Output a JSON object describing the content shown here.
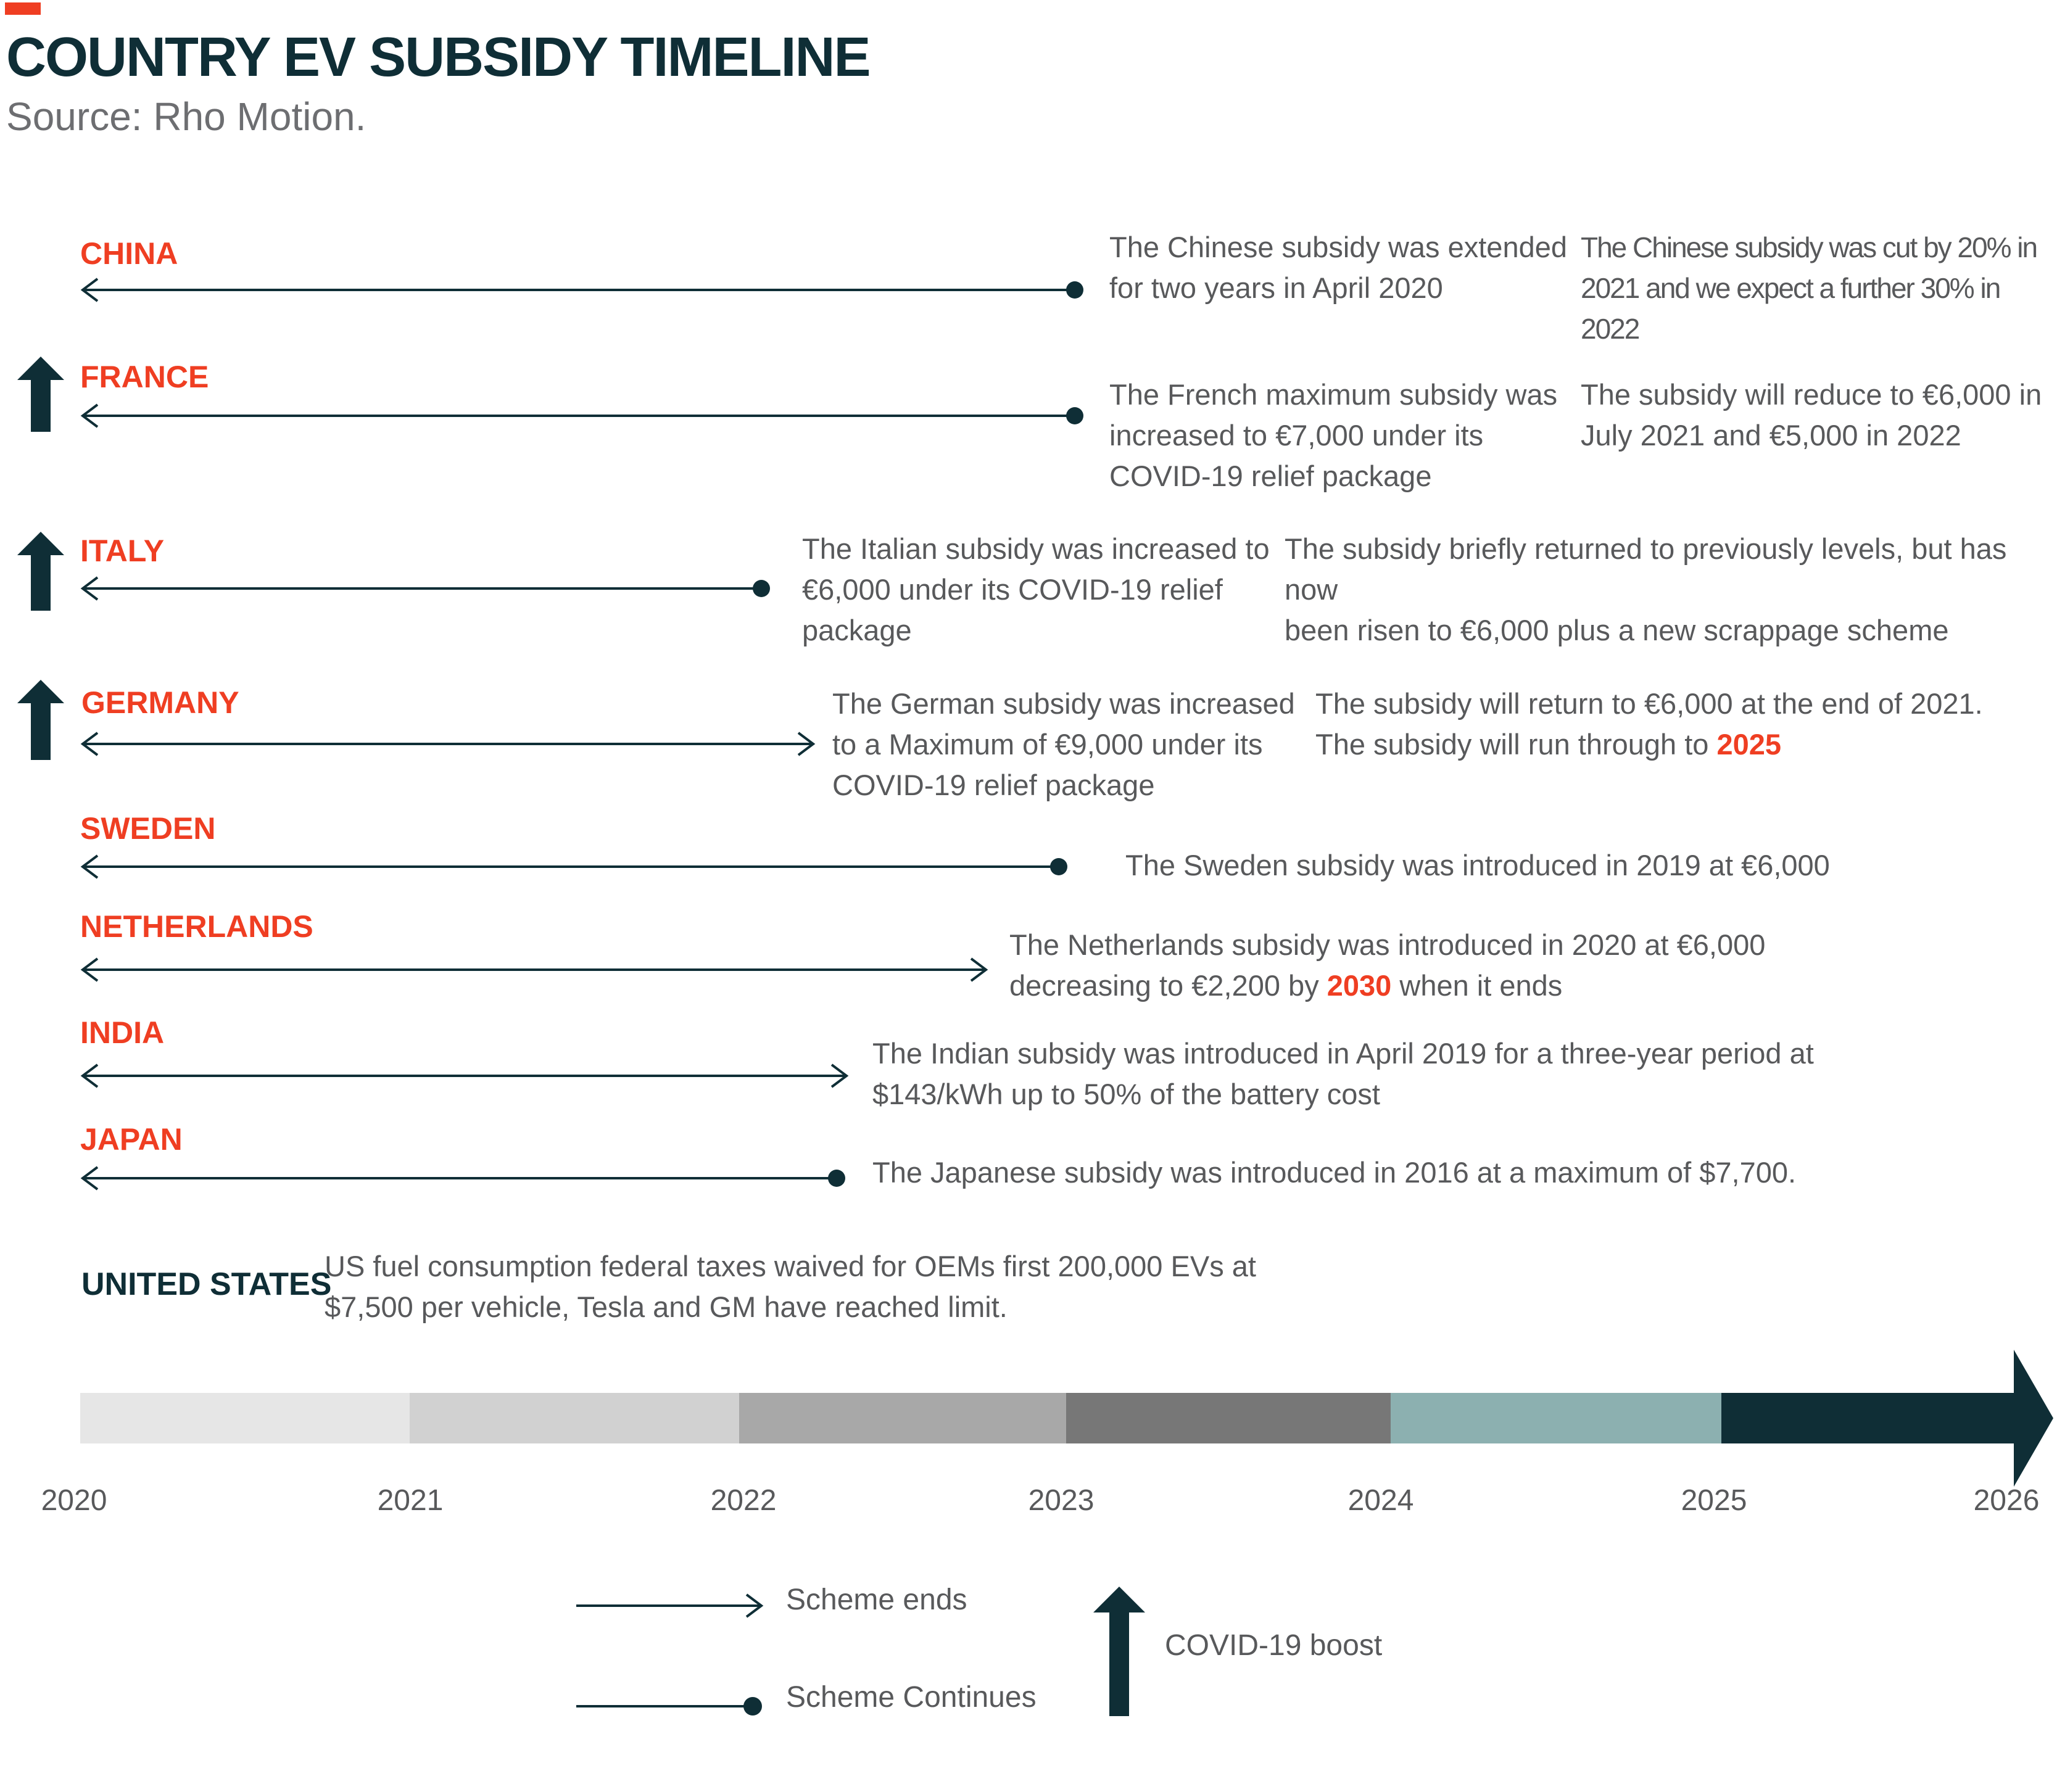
{
  "header": {
    "title": "COUNTRY EV SUBSIDY TIMELINE",
    "source": "Source: Rho Motion."
  },
  "colors": {
    "accent": "#ef3e22",
    "dark": "#0f2e36",
    "text": "#58595b"
  },
  "countries": [
    {
      "name": "CHINA",
      "end_year": 2023.0,
      "status": "continues",
      "covid_boost": false,
      "note1": "The Chinese subsidy was extended\nfor two years in April 2020",
      "note2": "The Chinese subsidy was cut by 20% in\n2021 and we expect a further 30% in 2022"
    },
    {
      "name": "FRANCE",
      "end_year": 2023.0,
      "status": "continues",
      "covid_boost": true,
      "note1": "The French maximum subsidy was\nincreased to €7,000 under its\nCOVID-19 relief package",
      "note2": "The subsidy will reduce to €6,000 in\nJuly 2021 and €5,000 in 2022"
    },
    {
      "name": "ITALY",
      "end_year": 2022.05,
      "status": "continues",
      "covid_boost": true,
      "note1": "The Italian subsidy was increased to\n€6,000 under its COVID-19 relief\npackage",
      "note2": "The subsidy briefly returned to previously levels, but has now\nbeen risen to €6,000 plus a new scrappage scheme"
    },
    {
      "name": "GERMANY",
      "end_year": 2022.2,
      "status": "ends",
      "covid_boost": true,
      "note1": "The German subsidy was increased\nto a Maximum of €9,000 under its\nCOVID-19 relief package",
      "note2_pre": "The subsidy will return to €6,000 at the end of 2021.\nThe subsidy will run through to ",
      "note2_hl": "2025"
    },
    {
      "name": "SWEDEN",
      "end_year": 2022.95,
      "status": "continues",
      "covid_boost": false,
      "note1": "The Sweden subsidy was introduced in 2019 at €6,000"
    },
    {
      "name": "NETHERLANDS",
      "end_year": 2022.75,
      "status": "ends",
      "covid_boost": false,
      "note1_pre": "The Netherlands subsidy was introduced in 2020 at €6,000\ndecreasing to €2,200 by ",
      "note1_hl": "2030",
      "note1_post": " when it ends"
    },
    {
      "name": "INDIA",
      "end_year": 2022.33,
      "status": "ends",
      "covid_boost": false,
      "note1": "The Indian subsidy was introduced in April 2019 for a three-year period at\n$143/kWh up to 50% of the battery cost"
    },
    {
      "name": "JAPAN",
      "end_year": 2022.3,
      "status": "continues",
      "covid_boost": false,
      "note1": "The Japanese subsidy was introduced in 2016 at a maximum of $7,700."
    }
  ],
  "united_states": {
    "label": "UNITED STATES",
    "note": "US fuel consumption federal taxes waived for OEMs first 200,000 EVs at\n$7,500 per vehicle, Tesla and GM have reached limit."
  },
  "timeline": {
    "years": [
      "2020",
      "2021",
      "2022",
      "2023",
      "2024",
      "2025",
      "2026"
    ],
    "segment_colors": [
      "#e6e6e6",
      "#d1d1d1",
      "#a8a8a8",
      "#777777",
      "#8cb0b0",
      "#0f2e36"
    ]
  },
  "legend": {
    "ends": "Scheme ends",
    "continues": "Scheme Continues",
    "covid": "COVID-19 boost"
  }
}
